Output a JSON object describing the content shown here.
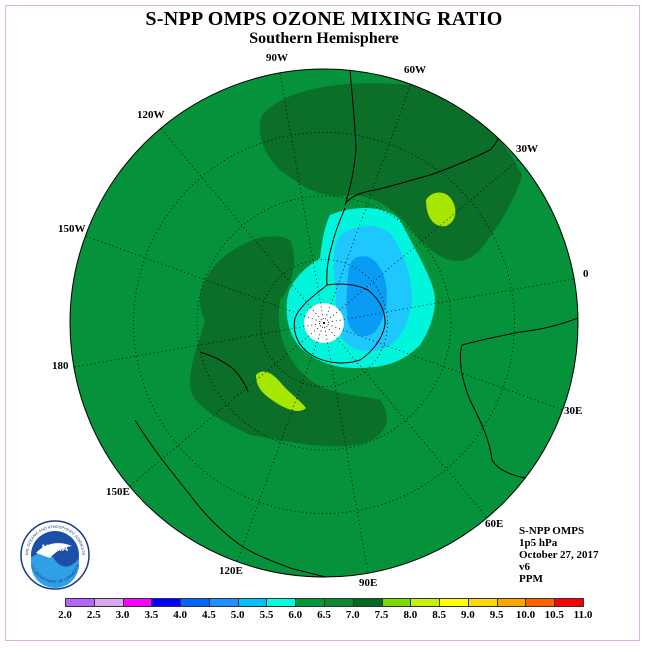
{
  "title": "S-NPP OMPS OZONE MIXING RATIO",
  "subtitle": "Southern Hemisphere",
  "longitude_labels": [
    "90W",
    "60W",
    "30W",
    "0",
    "30E",
    "60E",
    "90E",
    "120E",
    "150E",
    "180",
    "150W",
    "120W"
  ],
  "info": {
    "instrument": "S-NPP OMPS",
    "pressure": "1p5 hPa",
    "date": "October 27, 2017",
    "version": "v6",
    "units": "PPM"
  },
  "logo": {
    "text": "NOAA",
    "ring_text": "NATIONAL OCEANIC AND ATMOSPHERIC ADMINISTRATION",
    "ring_text_bottom": "U.S. DEPARTMENT OF COMMERCE"
  },
  "colorbar": {
    "ticks": [
      "2.0",
      "2.5",
      "3.0",
      "3.5",
      "4.0",
      "4.5",
      "5.0",
      "5.5",
      "6.0",
      "6.5",
      "7.0",
      "7.5",
      "8.0",
      "8.5",
      "9.0",
      "9.5",
      "10.0",
      "10.5",
      "11.0"
    ],
    "colors": [
      "#b266ff",
      "#d8a8f0",
      "#ff00ff",
      "#0000ff",
      "#0066ff",
      "#1e90ff",
      "#00bfff",
      "#00ffe0",
      "#009a3a",
      "#0a8a30",
      "#006a20",
      "#7bdc00",
      "#c8f000",
      "#ffff00",
      "#ffd700",
      "#ffa500",
      "#ff6000",
      "#ff0000",
      "#8b4513"
    ]
  },
  "colors": {
    "ocean_green": "#05923a",
    "dark_green": "#0b6f2a",
    "cyan": "#00f5dc",
    "light_blue": "#1ec8ff",
    "blue": "#0a9cf5",
    "yellow_green": "#a6e600"
  }
}
